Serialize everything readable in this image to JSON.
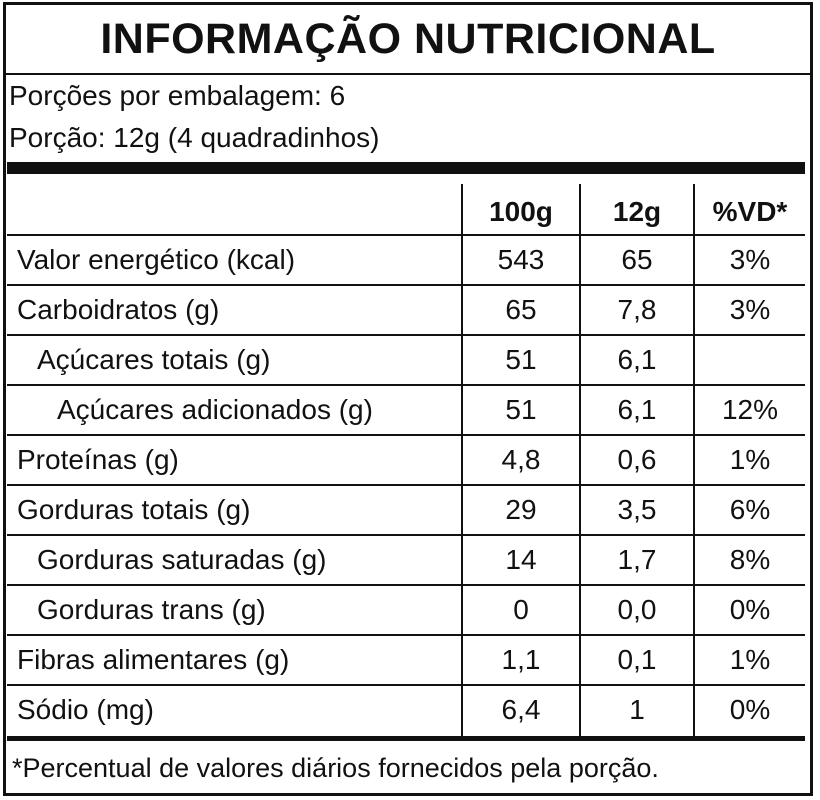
{
  "title": "INFORMAÇÃO NUTRICIONAL",
  "servings_per_package": "Porções por embalagem: 6",
  "serving_size": "Porção: 12g (4 quadradinhos)",
  "table": {
    "headers": [
      "",
      "100g",
      "12g",
      "%VD*"
    ],
    "rows": [
      {
        "name": "Valor energético (kcal)",
        "indent": 0,
        "per100g": "543",
        "perServing": "65",
        "dv": "3%"
      },
      {
        "name": "Carboidratos (g)",
        "indent": 0,
        "per100g": "65",
        "perServing": "7,8",
        "dv": "3%"
      },
      {
        "name": "Açúcares totais (g)",
        "indent": 1,
        "per100g": "51",
        "perServing": "6,1",
        "dv": ""
      },
      {
        "name": "Açúcares adicionados (g)",
        "indent": 2,
        "per100g": "51",
        "perServing": "6,1",
        "dv": "12%"
      },
      {
        "name": "Proteínas (g)",
        "indent": 0,
        "per100g": "4,8",
        "perServing": "0,6",
        "dv": "1%"
      },
      {
        "name": "Gorduras totais (g)",
        "indent": 0,
        "per100g": "29",
        "perServing": "3,5",
        "dv": "6%"
      },
      {
        "name": "Gorduras saturadas (g)",
        "indent": 1,
        "per100g": "14",
        "perServing": "1,7",
        "dv": "8%"
      },
      {
        "name": "Gorduras trans (g)",
        "indent": 1,
        "per100g": "0",
        "perServing": "0,0",
        "dv": "0%"
      },
      {
        "name": "Fibras alimentares (g)",
        "indent": 0,
        "per100g": "1,1",
        "perServing": "0,1",
        "dv": "1%"
      },
      {
        "name": "Sódio (mg)",
        "indent": 0,
        "per100g": "6,4",
        "perServing": "1",
        "dv": "0%"
      }
    ]
  },
  "footnote": "*Percentual de valores diários fornecidos pela porção."
}
